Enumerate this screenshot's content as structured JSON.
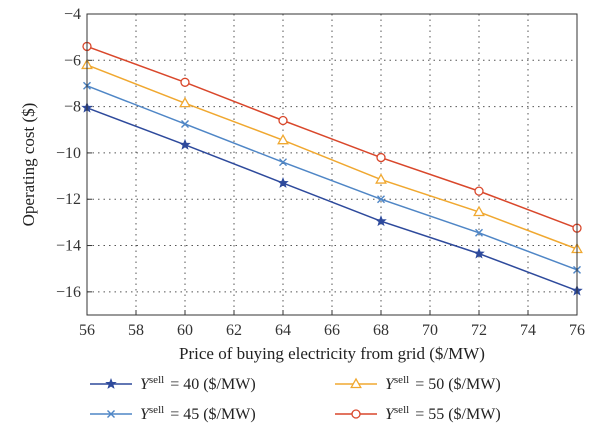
{
  "chart_data": {
    "type": "line",
    "title": "",
    "xlabel": "Price of buying electricity from grid ($/MW)",
    "ylabel": "Operating cost ($)",
    "xlim": [
      56,
      76
    ],
    "ylim": [
      -17,
      -4
    ],
    "xticks": [
      56,
      58,
      60,
      62,
      64,
      66,
      68,
      70,
      72,
      74,
      76
    ],
    "yticks": [
      -4,
      -6,
      -8,
      -10,
      -12,
      -14,
      -16
    ],
    "grid": true,
    "legend_position": "bottom",
    "x": [
      56,
      60,
      64,
      68,
      72,
      76
    ],
    "series": [
      {
        "name": "Ysell = 40 ($/MW)",
        "legend_symbol": "Y",
        "legend_sup": "sell",
        "legend_rest": " = 40 ($/MW)",
        "color": "#2e4a9c",
        "marker": "star",
        "values": [
          -8.05,
          -9.65,
          -11.3,
          -12.95,
          -14.35,
          -15.95
        ]
      },
      {
        "name": "Ysell = 45 ($/MW)",
        "legend_symbol": "Y",
        "legend_sup": "sell",
        "legend_rest": " = 45 ($/MW)",
        "color": "#4f86c6",
        "marker": "x",
        "values": [
          -7.1,
          -8.75,
          -10.4,
          -12.0,
          -13.45,
          -15.05
        ]
      },
      {
        "name": "Ysell = 50 ($/MW)",
        "legend_symbol": "Y",
        "legend_sup": "sell",
        "legend_rest": " = 50 ($/MW)",
        "color": "#f0a830",
        "marker": "triangle",
        "values": [
          -6.2,
          -7.85,
          -9.45,
          -11.15,
          -12.55,
          -14.15
        ]
      },
      {
        "name": "Ysell = 55 ($/MW)",
        "legend_symbol": "Y",
        "legend_sup": "sell",
        "legend_rest": " = 55 ($/MW)",
        "color": "#d9472b",
        "marker": "circle",
        "values": [
          -5.4,
          -6.95,
          -8.6,
          -10.2,
          -11.65,
          -13.25
        ]
      }
    ]
  }
}
